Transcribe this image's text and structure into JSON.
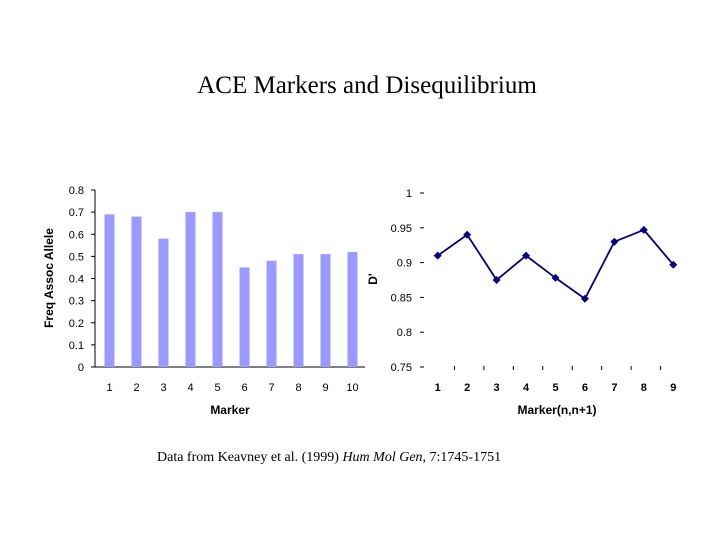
{
  "slide": {
    "title": "ACE Markers and Disequilibrium",
    "caption": {
      "prefix": "Data from Keavney et al. (1999) ",
      "journal": "Hum Mol Gen",
      "suffix": ", 7:1745-1751"
    }
  },
  "chart_data": [
    {
      "type": "bar",
      "categories": [
        "1",
        "2",
        "3",
        "4",
        "5",
        "6",
        "7",
        "8",
        "9",
        "10"
      ],
      "values": [
        0.69,
        0.68,
        0.58,
        0.7,
        0.7,
        0.45,
        0.48,
        0.51,
        0.51,
        0.52
      ],
      "xlabel": "Marker",
      "ylabel": "Freq Assoc Allele",
      "ylim": [
        0,
        0.8
      ],
      "yticks": [
        "0",
        "0.1",
        "0.2",
        "0.3",
        "0.4",
        "0.5",
        "0.6",
        "0.7",
        "0.8"
      ],
      "bar_color": "#9999ff",
      "grid": false
    },
    {
      "type": "line",
      "categories": [
        "1",
        "2",
        "3",
        "4",
        "5",
        "6",
        "7",
        "8",
        "9"
      ],
      "values": [
        0.91,
        0.94,
        0.875,
        0.91,
        0.878,
        0.848,
        0.93,
        0.947,
        0.897
      ],
      "xlabel": "Marker(n,n+1)",
      "ylabel": "D'",
      "ylim": [
        0.75,
        1
      ],
      "yticks": [
        "0.75",
        "0.8",
        "0.85",
        "0.9",
        "0.95",
        "1"
      ],
      "line_color": "#000080",
      "marker": "diamond",
      "grid": false
    }
  ]
}
